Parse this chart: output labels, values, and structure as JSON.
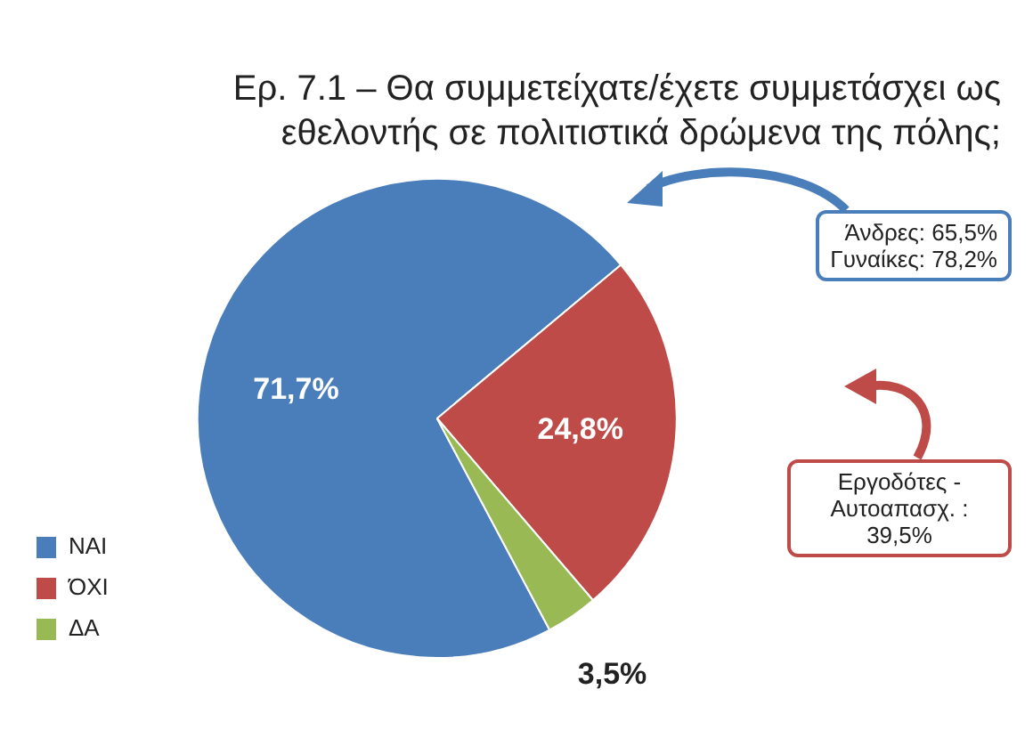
{
  "chart_data": {
    "type": "pie",
    "title": "Ερ. 7.1 – Θα συμμετείχατε/έχετε συμμετάσχει ως εθελοντής σε πολιτιστικά δρώμενα της πόλης;",
    "categories": [
      "ΝΑΙ",
      "ΌΧΙ",
      "ΔΑ"
    ],
    "values": [
      71.7,
      24.8,
      3.5
    ],
    "value_labels": [
      "71,7%",
      "24,8%",
      "3,5%"
    ],
    "colors": [
      "#4a7ebb",
      "#be4b48",
      "#98b954"
    ],
    "legend": "bottom left",
    "annotations": [
      "Άνδρες: 65,5%\nΓυναίκες: 78,2%",
      "Εργοδότες - Αυτοαπασχ. : 39,5%"
    ]
  }
}
